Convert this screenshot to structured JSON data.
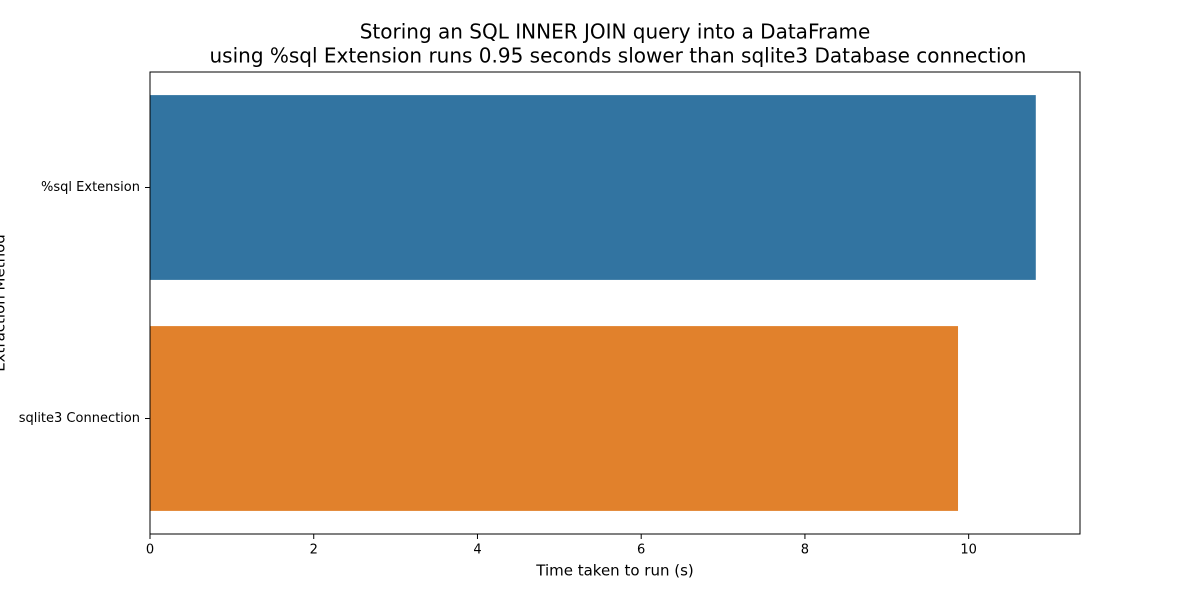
{
  "chart_data": {
    "type": "barh",
    "title": [
      "Storing an SQL INNER JOIN query into a DataFrame",
      "using %sql Extension runs 0.95 seconds slower than sqlite3 Database connection"
    ],
    "x_label": "Time taken to run (s)",
    "y_label": "Extraction Method",
    "categories": [
      "%sql Extension",
      "sqlite3 Connection"
    ],
    "values": [
      10.82,
      9.87
    ],
    "colors": [
      "#3274a1",
      "#e1812c"
    ],
    "xlim": [
      0,
      11.36
    ],
    "xticks": [
      0,
      2,
      4,
      6,
      8,
      10
    ],
    "grid": false
  }
}
